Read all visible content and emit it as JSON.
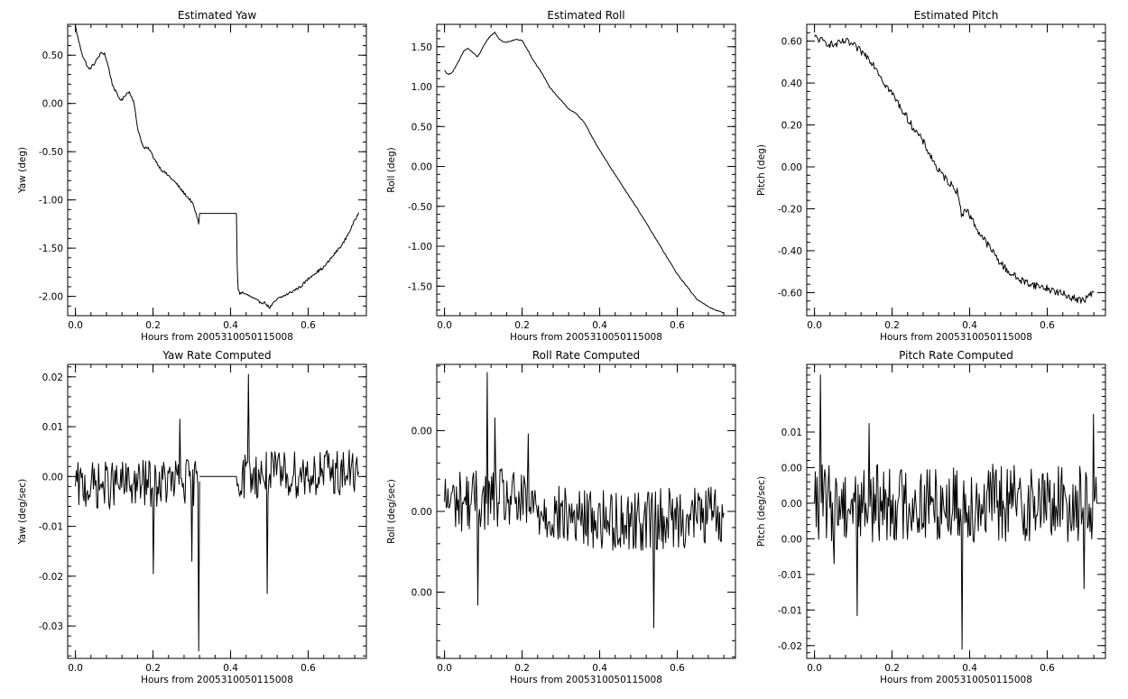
{
  "chart_data": [
    {
      "type": "line",
      "title": "Estimated Yaw",
      "xlabel": "Hours from 2005310050115008",
      "ylabel": "Yaw (deg)",
      "xlim": [
        -0.02,
        0.75
      ],
      "ylim": [
        -2.2,
        0.82
      ],
      "xticks": [
        0.0,
        0.2,
        0.4,
        0.6
      ],
      "xtick_labels": [
        "0.0",
        "0.2",
        "0.4",
        "0.6"
      ],
      "yticks": [
        0.5,
        0.0,
        -0.5,
        -1.0,
        -1.5,
        -2.0
      ],
      "ytick_labels": [
        "0.50",
        "0.00",
        "-0.50",
        "-1.00",
        "-1.50",
        "-2.00"
      ],
      "grid": false,
      "noise": 0.015,
      "series": [
        {
          "x": [
            0.0,
            0.01,
            0.02,
            0.035,
            0.05,
            0.065,
            0.075,
            0.085,
            0.095,
            0.11,
            0.12,
            0.13,
            0.14,
            0.15,
            0.16,
            0.175,
            0.19,
            0.2,
            0.22,
            0.24,
            0.26,
            0.28,
            0.3,
            0.31,
            0.318,
            0.32
          ],
          "y": [
            0.8,
            0.62,
            0.48,
            0.35,
            0.42,
            0.52,
            0.52,
            0.38,
            0.2,
            0.07,
            0.03,
            0.1,
            0.12,
            0.02,
            -0.25,
            -0.46,
            -0.47,
            -0.55,
            -0.68,
            -0.75,
            -0.83,
            -0.93,
            -1.02,
            -1.13,
            -1.25,
            -1.14
          ]
        },
        {
          "x": [
            0.32,
            0.415
          ],
          "y": [
            -1.14,
            -1.14
          ],
          "smooth": true
        },
        {
          "x": [
            0.415,
            0.418,
            0.423,
            0.43,
            0.45,
            0.47,
            0.49,
            0.5,
            0.52,
            0.55,
            0.58,
            0.61,
            0.64,
            0.66,
            0.69,
            0.71,
            0.73
          ],
          "y": [
            -1.14,
            -1.9,
            -1.97,
            -1.96,
            -2.0,
            -2.05,
            -2.07,
            -2.12,
            -2.03,
            -1.97,
            -1.9,
            -1.78,
            -1.7,
            -1.6,
            -1.45,
            -1.3,
            -1.13
          ]
        }
      ]
    },
    {
      "type": "line",
      "title": "Estimated Roll",
      "xlabel": "Hours from 2005310050115008",
      "ylabel": "Roll (deg)",
      "xlim": [
        -0.02,
        0.75
      ],
      "ylim": [
        -1.87,
        1.78
      ],
      "xticks": [
        0.0,
        0.2,
        0.4,
        0.6
      ],
      "xtick_labels": [
        "0.0",
        "0.2",
        "0.4",
        "0.6"
      ],
      "yticks": [
        1.5,
        1.0,
        0.5,
        0.0,
        -0.5,
        -1.0,
        -1.5
      ],
      "ytick_labels": [
        "1.50",
        "1.00",
        "0.50",
        "0.00",
        "-0.50",
        "-1.00",
        "-1.50"
      ],
      "grid": false,
      "noise": 0.006,
      "series": [
        {
          "x": [
            0.0,
            0.01,
            0.02,
            0.035,
            0.05,
            0.06,
            0.07,
            0.085,
            0.1,
            0.115,
            0.13,
            0.14,
            0.155,
            0.17,
            0.185,
            0.2,
            0.215,
            0.23,
            0.25,
            0.27,
            0.29,
            0.31,
            0.32,
            0.34,
            0.36,
            0.4,
            0.45,
            0.5,
            0.55,
            0.6,
            0.65,
            0.68,
            0.72
          ],
          "y": [
            1.2,
            1.15,
            1.18,
            1.3,
            1.45,
            1.48,
            1.44,
            1.37,
            1.5,
            1.62,
            1.68,
            1.6,
            1.55,
            1.57,
            1.59,
            1.58,
            1.45,
            1.32,
            1.18,
            1.0,
            0.88,
            0.78,
            0.72,
            0.66,
            0.55,
            0.2,
            -0.18,
            -0.55,
            -0.95,
            -1.35,
            -1.66,
            -1.76,
            -1.84
          ]
        }
      ]
    },
    {
      "type": "line",
      "title": "Estimated Pitch",
      "xlabel": "Hours from 2005310050115008",
      "ylabel": "Pitch (deg)",
      "xlim": [
        -0.02,
        0.75
      ],
      "ylim": [
        -0.71,
        0.68
      ],
      "xticks": [
        0.0,
        0.2,
        0.4,
        0.6
      ],
      "xtick_labels": [
        "0.0",
        "0.2",
        "0.4",
        "0.6"
      ],
      "yticks": [
        0.6,
        0.4,
        0.2,
        0.0,
        -0.2,
        -0.4,
        -0.6
      ],
      "ytick_labels": [
        "0.60",
        "0.40",
        "0.20",
        "0.00",
        "-0.20",
        "-0.40",
        "-0.60"
      ],
      "grid": false,
      "noise": 0.018,
      "series": [
        {
          "x": [
            0.0,
            0.02,
            0.05,
            0.08,
            0.1,
            0.12,
            0.14,
            0.16,
            0.18,
            0.2,
            0.22,
            0.25,
            0.28,
            0.3,
            0.32,
            0.35,
            0.37,
            0.38,
            0.385,
            0.39,
            0.4,
            0.42,
            0.45,
            0.48,
            0.5,
            0.53,
            0.56,
            0.6,
            0.63,
            0.66,
            0.69,
            0.72
          ],
          "y": [
            0.62,
            0.6,
            0.58,
            0.6,
            0.58,
            0.55,
            0.52,
            0.47,
            0.4,
            0.35,
            0.29,
            0.2,
            0.12,
            0.05,
            -0.02,
            -0.08,
            -0.12,
            -0.25,
            -0.2,
            -0.2,
            -0.23,
            -0.3,
            -0.38,
            -0.46,
            -0.5,
            -0.54,
            -0.56,
            -0.58,
            -0.6,
            -0.62,
            -0.64,
            -0.6
          ]
        }
      ]
    },
    {
      "type": "line",
      "title": "Yaw Rate Computed",
      "xlabel": "Hours from 2005310050115008",
      "ylabel": "Yaw (deg/sec)",
      "xlim": [
        -0.02,
        0.75
      ],
      "ylim": [
        -0.0365,
        0.0225
      ],
      "xticks": [
        0.0,
        0.2,
        0.4,
        0.6
      ],
      "xtick_labels": [
        "0.0",
        "0.2",
        "0.4",
        "0.6"
      ],
      "yticks": [
        0.02,
        0.01,
        0.0,
        -0.01,
        -0.02,
        -0.03
      ],
      "ytick_labels": [
        "0.02",
        "0.01",
        "0.00",
        "-0.01",
        "-0.02",
        "-0.03"
      ],
      "grid": false,
      "noise": 0.0048,
      "series": [
        {
          "x": [
            0.0,
            0.32
          ],
          "y": [
            -0.002,
            -0.001
          ],
          "spikes": [
            [
              0.2,
              -0.0195
            ],
            [
              0.27,
              0.0115
            ],
            [
              0.3,
              -0.017
            ],
            [
              0.318,
              -0.035
            ]
          ]
        },
        {
          "x": [
            0.32,
            0.415
          ],
          "y": [
            0.0,
            0.0
          ],
          "smooth": true
        },
        {
          "x": [
            0.415,
            0.73
          ],
          "y": [
            0.0,
            0.001
          ],
          "spikes": [
            [
              0.445,
              0.0205
            ],
            [
              0.495,
              -0.0235
            ]
          ]
        }
      ]
    },
    {
      "type": "line",
      "title": "Roll Rate Computed",
      "xlabel": "Hours from 2005310050115008",
      "ylabel": "Roll (deg/sec)",
      "xlim": [
        -0.02,
        0.75
      ],
      "ylim": [
        -0.0091,
        0.0091
      ],
      "xticks": [
        0.0,
        0.2,
        0.4,
        0.6
      ],
      "xtick_labels": [
        "0.0",
        "0.2",
        "0.4",
        "0.6"
      ],
      "yticks": [
        0.005,
        0.0,
        -0.005
      ],
      "ytick_labels": [
        "0.00",
        "0.00",
        "0.00"
      ],
      "grid": false,
      "noise": 0.0019,
      "series": [
        {
          "x": [
            0.0,
            0.15,
            0.3,
            0.45,
            0.6,
            0.72
          ],
          "y": [
            0.0006,
            0.0008,
            -0.0003,
            -0.0006,
            -0.0004,
            -0.0001
          ],
          "spikes": [
            [
              0.085,
              -0.0058
            ],
            [
              0.11,
              0.0086
            ],
            [
              0.13,
              0.0058
            ],
            [
              0.215,
              0.0048
            ],
            [
              0.54,
              -0.0072
            ]
          ]
        }
      ]
    },
    {
      "type": "line",
      "title": "Pitch Rate Computed",
      "xlabel": "Hours from 2005310050115008",
      "ylabel": "Pitch (deg/sec)",
      "xlim": [
        -0.02,
        0.75
      ],
      "ylim": [
        -0.0218,
        0.0195
      ],
      "xticks": [
        0.0,
        0.2,
        0.4,
        0.6
      ],
      "xtick_labels": [
        "0.0",
        "0.2",
        "0.4",
        "0.6"
      ],
      "yticks": [
        0.01,
        0.005,
        0.0,
        -0.005,
        -0.01,
        -0.015,
        -0.02
      ],
      "ytick_labels": [
        "0.01",
        "0.00",
        "0.00",
        "0.00",
        "-0.01",
        "-0.01",
        "-0.02"
      ],
      "grid": false,
      "noise": 0.0055,
      "series": [
        {
          "x": [
            0.0,
            0.73
          ],
          "y": [
            0.0,
            0.0
          ],
          "spikes": [
            [
              0.015,
              0.018
            ],
            [
              0.05,
              -0.0085
            ],
            [
              0.11,
              -0.0158
            ],
            [
              0.14,
              0.0112
            ],
            [
              0.38,
              -0.0205
            ],
            [
              0.695,
              -0.012
            ],
            [
              0.72,
              0.0125
            ]
          ]
        }
      ]
    }
  ]
}
